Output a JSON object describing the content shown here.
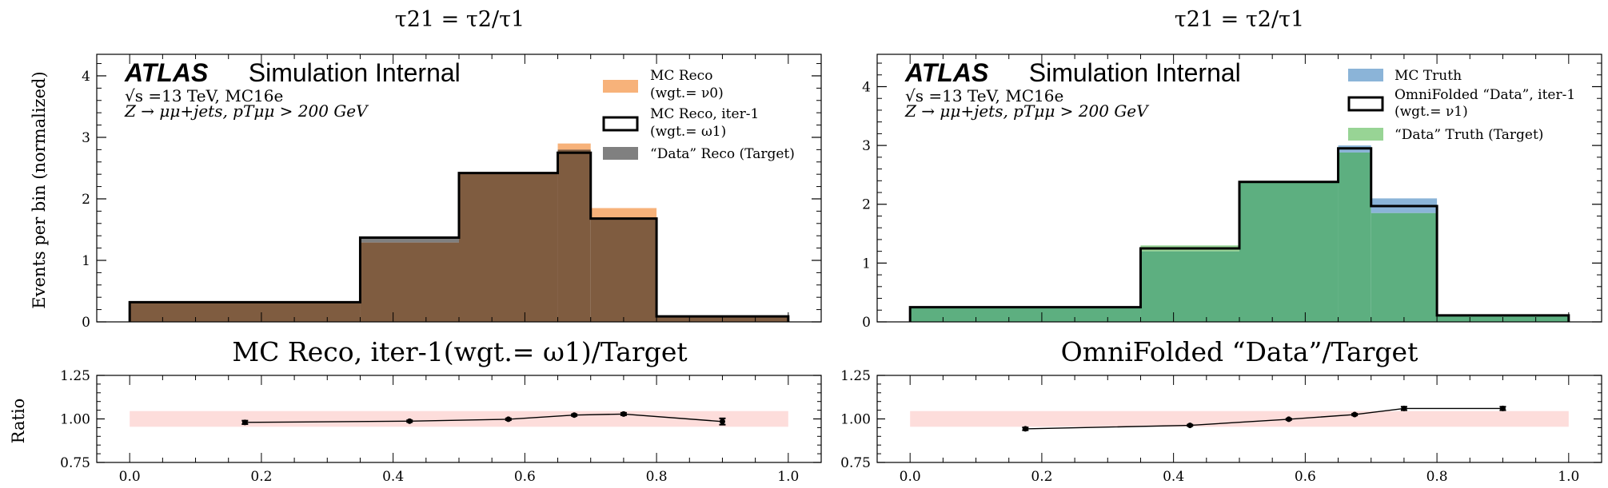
{
  "colors": {
    "mc_reco": "#f7b27a",
    "data_reco": "#808080",
    "overlap_reco": "#7f5c40",
    "mc_truth": "#8bb4d8",
    "data_truth": "#98d495",
    "overlap_truth": "#5daf80",
    "step_line": "#000000",
    "ratio_band": "#fddddb"
  },
  "common": {
    "ylabel": "Events per bin (normalized)",
    "ratio_ylabel": "Ratio",
    "atlas_word": "ATLAS",
    "atlas_suffix": "Simulation Internal",
    "info_line1": "√s =13 TeV, MC16e",
    "info_line2": "Z → μμ+jets, pTμμ > 200 GeV"
  },
  "chart_data": [
    {
      "type": "histogram",
      "title": "τ21 = τ2/τ1",
      "bin_edges": [
        0.0,
        0.35,
        0.5,
        0.65,
        0.7,
        0.8,
        1.0
      ],
      "ylim": [
        0,
        4.35
      ],
      "yticks": [
        0,
        1,
        2,
        3,
        4
      ],
      "xlim": [
        -0.05,
        1.05
      ],
      "legend_position": "top-right",
      "series": [
        {
          "name": "MC Reco",
          "name_line2": "(wgt.= ν0)",
          "style": "filled",
          "color_key": "mc_reco",
          "values": [
            0.32,
            1.29,
            2.43,
            2.9,
            1.85,
            0.09
          ]
        },
        {
          "name": "MC Reco, iter-1",
          "name_line2": "(wgt.= ω1)",
          "style": "step",
          "values": [
            0.32,
            1.37,
            2.42,
            2.75,
            1.68,
            0.09
          ]
        },
        {
          "name": "“Data” Reco (Target)",
          "style": "filled",
          "color_key": "data_reco",
          "values": [
            0.32,
            1.38,
            2.43,
            2.8,
            1.68,
            0.09
          ]
        }
      ],
      "ratio": {
        "title": "MC Reco, iter-1(wgt.= ω1)/Target",
        "ylim": [
          0.75,
          1.25
        ],
        "yticks": [
          "0.75",
          "1.00",
          "1.25"
        ],
        "band": [
          0.955,
          1.045
        ],
        "x": [
          0.175,
          0.425,
          0.575,
          0.675,
          0.75,
          0.9
        ],
        "y": [
          0.98,
          0.987,
          0.998,
          1.022,
          1.028,
          0.985
        ],
        "err": [
          0.01,
          0.005,
          0.005,
          0.005,
          0.007,
          0.018
        ]
      },
      "xticks": [
        "0.0",
        "0.2",
        "0.4",
        "0.6",
        "0.8",
        "1.0"
      ]
    },
    {
      "type": "histogram",
      "title": "τ21 = τ2/τ1",
      "bin_edges": [
        0.0,
        0.35,
        0.5,
        0.65,
        0.7,
        0.8,
        1.0
      ],
      "ylim": [
        0,
        4.55
      ],
      "yticks": [
        0,
        1,
        2,
        3,
        4
      ],
      "xlim": [
        -0.05,
        1.05
      ],
      "legend_position": "top-right",
      "series": [
        {
          "name": "MC Truth",
          "style": "filled",
          "color_key": "mc_truth",
          "values": [
            0.25,
            1.2,
            2.38,
            3.0,
            2.1,
            0.11
          ]
        },
        {
          "name": "OmniFolded “Data”, iter-1",
          "name_line2": "(wgt.= ν1)",
          "style": "step",
          "values": [
            0.25,
            1.25,
            2.38,
            2.95,
            1.97,
            0.11
          ]
        },
        {
          "name": "“Data” Truth (Target)",
          "style": "filled",
          "color_key": "data_truth",
          "values": [
            0.25,
            1.3,
            2.38,
            2.88,
            1.85,
            0.11
          ]
        }
      ],
      "ratio": {
        "title": "OmniFolded “Data”/Target",
        "ylim": [
          0.75,
          1.25
        ],
        "yticks": [
          "0.75",
          "1.00",
          "1.25"
        ],
        "band": [
          0.955,
          1.045
        ],
        "x": [
          0.175,
          0.425,
          0.575,
          0.675,
          0.75,
          0.9
        ],
        "y": [
          0.943,
          0.963,
          0.998,
          1.025,
          1.06,
          1.06
        ],
        "err": [
          0.008,
          0.004,
          0.004,
          0.005,
          0.01,
          0.01
        ]
      },
      "xticks": [
        "0.0",
        "0.2",
        "0.4",
        "0.6",
        "0.8",
        "1.0"
      ]
    }
  ]
}
